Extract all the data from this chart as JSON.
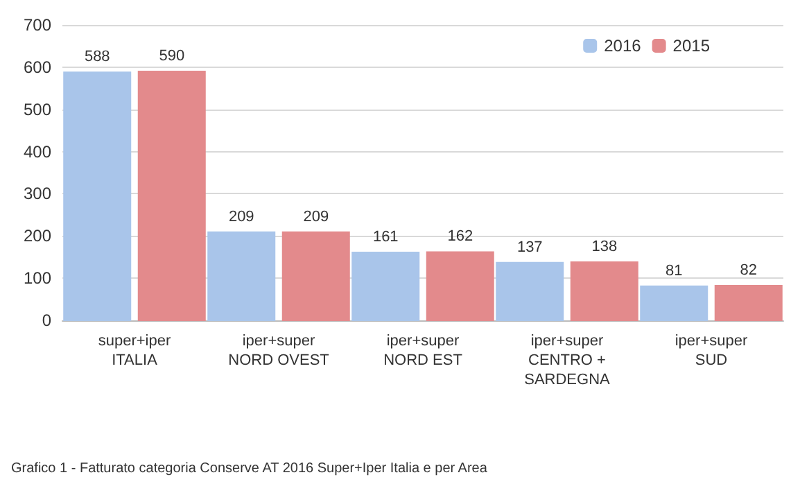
{
  "chart_data": {
    "type": "bar",
    "categories": [
      "super+iper\nITALIA",
      "iper+super\nNORD OVEST",
      "iper+super\nNORD EST",
      "iper+super\nCENTRO +\nSARDEGNA",
      "iper+super\nSUD"
    ],
    "series": [
      {
        "name": "2016",
        "color": "#a9c5ea",
        "values": [
          588,
          209,
          161,
          137,
          81
        ]
      },
      {
        "name": "2015",
        "color": "#e38a8c",
        "values": [
          590,
          209,
          162,
          138,
          82
        ]
      }
    ],
    "ylim": [
      0,
      700
    ],
    "yticks": [
      0,
      100,
      200,
      300,
      400,
      500,
      600,
      700
    ],
    "grid": "y",
    "legend": "top right",
    "data_labels": true,
    "annotations": [
      "Grafico 1 - Fatturato categoria Conserve AT 2016 Super+Iper Italia e per Area"
    ]
  }
}
